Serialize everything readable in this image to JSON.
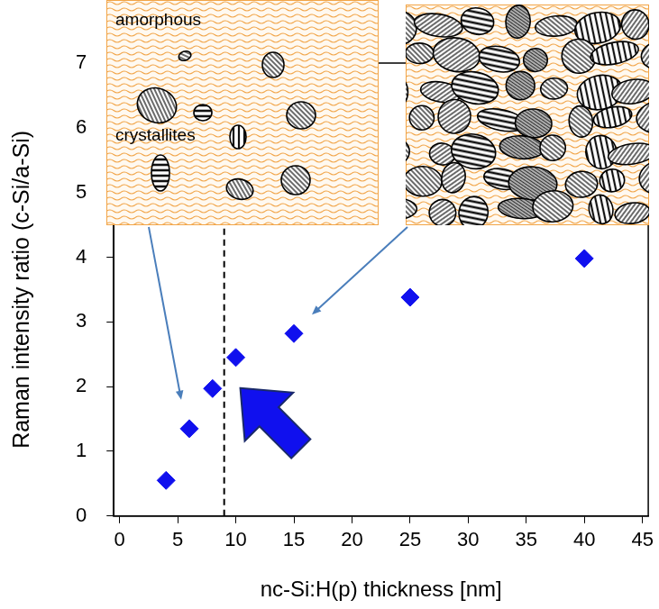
{
  "chart_data": {
    "type": "scatter",
    "x": [
      4,
      6,
      8,
      10,
      15,
      25,
      40
    ],
    "values": [
      0.55,
      1.35,
      1.97,
      2.45,
      2.82,
      3.38,
      3.98
    ],
    "color": "#1010ee",
    "marker": "diamond",
    "xlabel": "nc-Si:H(p) thickness [nm]",
    "ylabel": "Raman intensity ratio (c-Si/a-Si)",
    "xlim": [
      -0.5,
      45.5
    ],
    "xticks": [
      0,
      5,
      10,
      15,
      20,
      25,
      30,
      35,
      40,
      45
    ],
    "ylim": [
      0,
      7
    ],
    "yticks": [
      0,
      1,
      2,
      3,
      4,
      5,
      6,
      7
    ],
    "grid": false,
    "reference_line_x": 9,
    "inset_labels": [
      "amorphous",
      "crystallites"
    ]
  }
}
